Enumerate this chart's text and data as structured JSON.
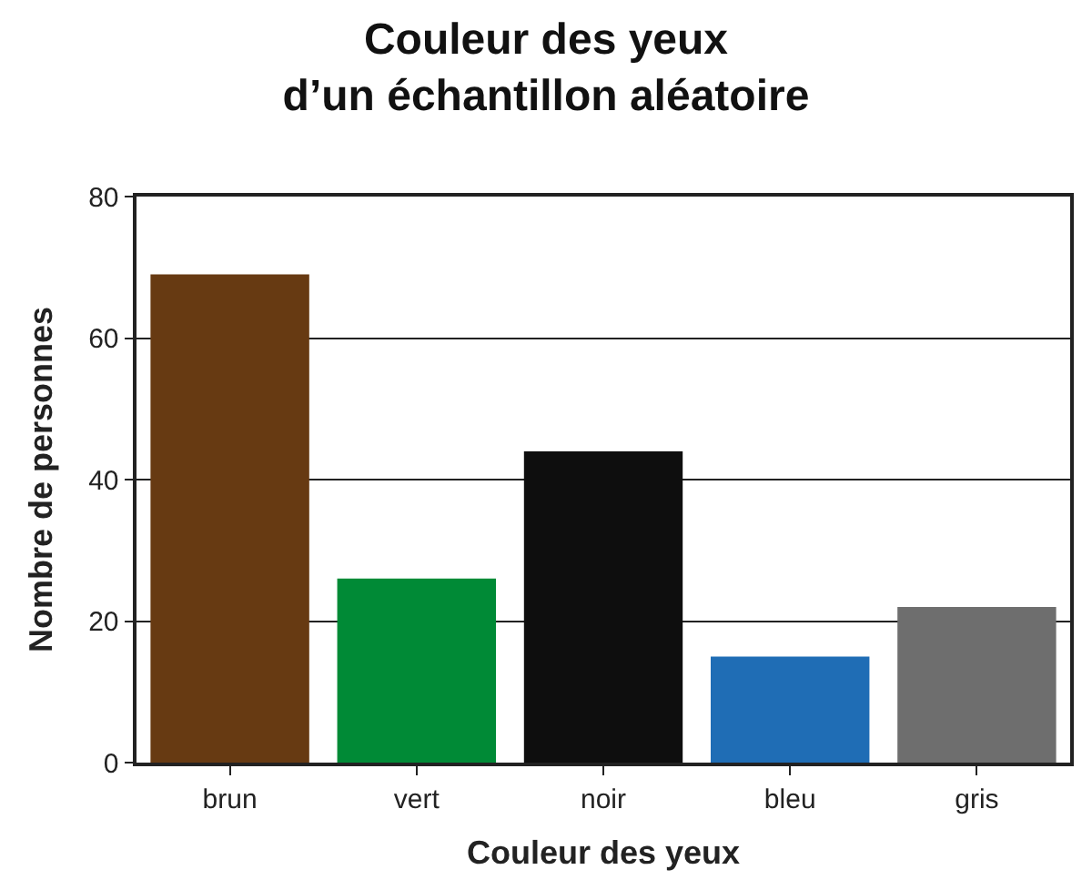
{
  "chart_data": {
    "type": "bar",
    "title": "Couleur des yeux\nd’un échantillon aléatoire",
    "xlabel": "Couleur des yeux",
    "ylabel": "Nombre de personnes",
    "categories": [
      "brun",
      "vert",
      "noir",
      "bleu",
      "gris"
    ],
    "values": [
      69,
      26,
      44,
      15,
      22
    ],
    "colors": [
      "#673a12",
      "#008a36",
      "#0e0e0e",
      "#1f6db5",
      "#6e6e6e"
    ],
    "ylim": [
      0,
      80
    ],
    "yticks": [
      0,
      20,
      40,
      60,
      80
    ],
    "grid": "y"
  }
}
